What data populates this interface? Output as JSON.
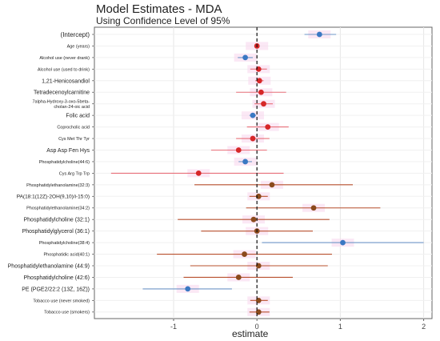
{
  "chart_data": {
    "type": "forest",
    "title": "Model Estimates - MDA",
    "subtitle": "Using Confidence Level of 95%",
    "xlabel": "estimate",
    "xlim": [
      -1.95,
      2.1
    ],
    "x_ticks": [
      -1,
      0,
      1,
      2
    ],
    "reference_line": 0,
    "colors": {
      "positive": "#d62728",
      "negative": "#3a78c3",
      "nonsig": "#8b4a1c",
      "ci_pos": "#e8707a",
      "ci_neg": "#6f97c8",
      "ci_nonsig": "#b8502e"
    },
    "rows": [
      {
        "label": "(Intercept)",
        "estimate": 0.75,
        "low": 0.57,
        "high": 0.95,
        "color": "negative",
        "fontsize": 8
      },
      {
        "label": "Age (years)",
        "estimate": 0.0,
        "low": -0.02,
        "high": 0.02,
        "color": "positive",
        "fontsize": 5.5
      },
      {
        "label": "Alcohol use (never drank)",
        "estimate": -0.14,
        "low": -0.23,
        "high": -0.05,
        "color": "negative",
        "fontsize": 5.5
      },
      {
        "label": "Alcohol use (used to drink)",
        "estimate": 0.02,
        "low": -0.08,
        "high": 0.12,
        "color": "positive",
        "fontsize": 5.5
      },
      {
        "label": "1,21-Henicosandiol",
        "estimate": 0.03,
        "low": -0.02,
        "high": 0.08,
        "color": "positive",
        "fontsize": 7
      },
      {
        "label": "Tetradecenoylcarnitine",
        "estimate": 0.05,
        "low": -0.25,
        "high": 0.35,
        "color": "positive",
        "fontsize": 7
      },
      {
        "label": "7alpha-Hydroxy-3-oxo-5beta-\ncholan-24-oic acid",
        "estimate": 0.08,
        "low": -0.03,
        "high": 0.19,
        "color": "positive",
        "fontsize": 5.5
      },
      {
        "label": "Folic acid",
        "estimate": -0.05,
        "low": -0.09,
        "high": -0.01,
        "color": "negative",
        "fontsize": 7
      },
      {
        "label": "Coprocholic acid",
        "estimate": 0.13,
        "low": -0.12,
        "high": 0.38,
        "color": "positive",
        "fontsize": 5.5
      },
      {
        "label": "Cys Met Thr Tyr",
        "estimate": -0.05,
        "low": -0.25,
        "high": 0.15,
        "color": "positive",
        "fontsize": 5.5
      },
      {
        "label": "Asp Asp Fen Hys",
        "estimate": -0.22,
        "low": -0.55,
        "high": 0.12,
        "color": "positive",
        "fontsize": 7
      },
      {
        "label": "Phosphatidylcholine(44:6)",
        "estimate": -0.14,
        "low": -0.22,
        "high": -0.06,
        "color": "negative",
        "fontsize": 5.5
      },
      {
        "label": "Cys Arg Trp Trp",
        "estimate": -0.7,
        "low": -1.75,
        "high": 0.32,
        "color": "positive",
        "fontsize": 5.5
      },
      {
        "label": "Phosphatidylethanolamine(32:3)",
        "estimate": 0.18,
        "low": -0.75,
        "high": 1.15,
        "color": "nonsig",
        "fontsize": 5.5
      },
      {
        "label": "PA(18:1(12Z)-2OH(9,10)/i-15:0)",
        "estimate": 0.02,
        "low": -0.09,
        "high": 0.13,
        "color": "nonsig",
        "fontsize": 6.5
      },
      {
        "label": "Phosphatidylethanolamine(34:2)",
        "estimate": 0.68,
        "low": -0.13,
        "high": 1.48,
        "color": "nonsig",
        "fontsize": 5.5
      },
      {
        "label": "Phosphatidylcholine (32:1)",
        "estimate": -0.04,
        "low": -0.95,
        "high": 0.87,
        "color": "nonsig",
        "fontsize": 7
      },
      {
        "label": "Phosphatidylglycerol (36:1)",
        "estimate": 0.0,
        "low": -0.67,
        "high": 0.67,
        "color": "nonsig",
        "fontsize": 7
      },
      {
        "label": "Phosphatidylcholine(38:4)",
        "estimate": 1.03,
        "low": 0.06,
        "high": 2.0,
        "color": "negative",
        "fontsize": 5.5
      },
      {
        "label": "Phosphatidic acid(40:1)",
        "estimate": -0.15,
        "low": -1.2,
        "high": 0.9,
        "color": "nonsig",
        "fontsize": 5.5
      },
      {
        "label": "Phosphatidylethanolamine (44:9)",
        "estimate": 0.02,
        "low": -0.8,
        "high": 0.85,
        "color": "nonsig",
        "fontsize": 7
      },
      {
        "label": "Phosphatidylcholine (42:6)",
        "estimate": -0.22,
        "low": -0.88,
        "high": 0.43,
        "color": "nonsig",
        "fontsize": 7
      },
      {
        "label": "PE (PGE2/22:2 (13Z, 16Z))",
        "estimate": -0.83,
        "low": -1.37,
        "high": -0.3,
        "color": "negative",
        "fontsize": 7
      },
      {
        "label": "Tobacco use (never smoked)",
        "estimate": 0.02,
        "low": -0.08,
        "high": 0.13,
        "color": "nonsig",
        "fontsize": 5.5
      },
      {
        "label": "Tobacco use (smokers)",
        "estimate": 0.02,
        "low": -0.09,
        "high": 0.15,
        "color": "nonsig",
        "fontsize": 5.5
      }
    ]
  }
}
